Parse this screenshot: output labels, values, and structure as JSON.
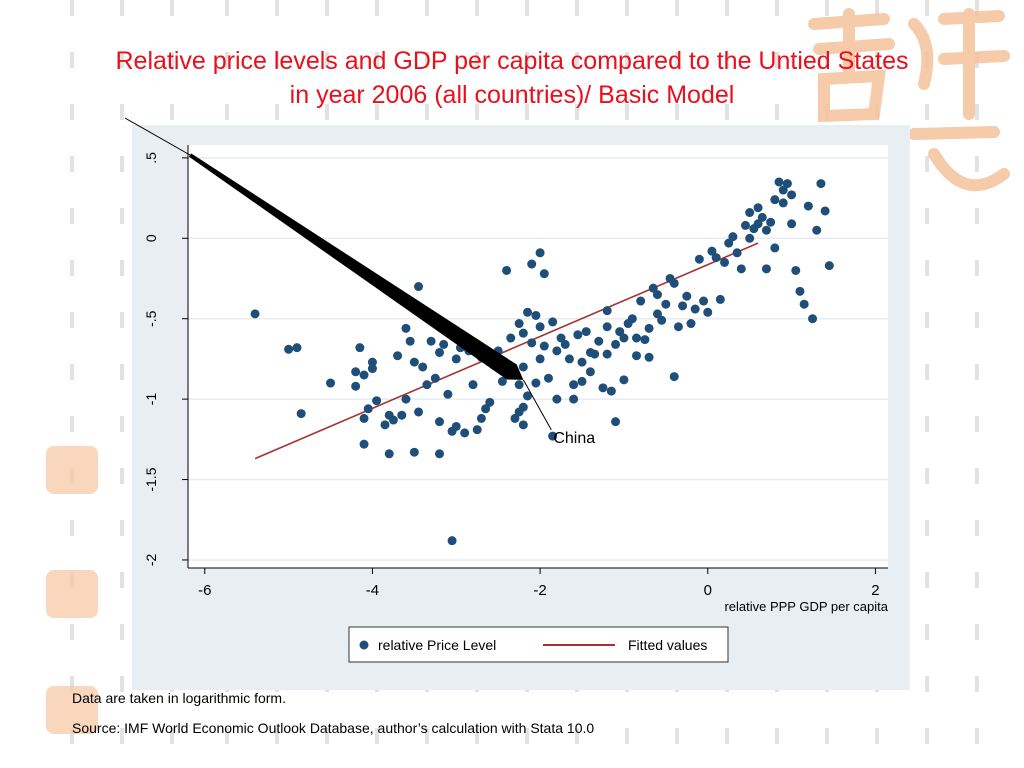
{
  "title_line1": "Relative price levels and GDP per capita compared to the Untied States",
  "title_line2": "in year 2006 (all countries)/ Basic Model",
  "footnotes": {
    "line1": "Data are taken in logarithmic form.",
    "line2": "Source: IMF World Economic Outlook Database, author’s calculation with Stata 10.0"
  },
  "chart_data": {
    "type": "scatter",
    "xlabel": "relative PPP GDP per capita",
    "ylabel": "",
    "xlim": [
      -6.2,
      2.15
    ],
    "ylim": [
      -2.05,
      0.58
    ],
    "x_ticks": [
      {
        "v": -6,
        "label": "-6"
      },
      {
        "v": -4,
        "label": "-4"
      },
      {
        "v": -2,
        "label": "-2"
      },
      {
        "v": 0,
        "label": "0"
      },
      {
        "v": 2,
        "label": "2"
      }
    ],
    "y_ticks": [
      {
        "v": 0.5,
        "label": ".5"
      },
      {
        "v": 0,
        "label": "0"
      },
      {
        "v": -0.5,
        "label": "-.5"
      },
      {
        "v": -1,
        "label": "-1"
      },
      {
        "v": -1.5,
        "label": "-1.5"
      },
      {
        "v": -2,
        "label": "-2"
      }
    ],
    "grid": true,
    "legend_position": "bottom",
    "colors": {
      "points": "#1f4e79",
      "fit": "#a83232",
      "panel_bg": "#e8eef2",
      "plot_bg": "#ffffff"
    },
    "annotation": {
      "label": "China",
      "x": -2.2,
      "y": -0.88
    },
    "series": [
      {
        "name": "relative Price Level",
        "kind": "scatter",
        "points": [
          [
            -5.4,
            -0.47
          ],
          [
            -5.0,
            -0.69
          ],
          [
            -4.9,
            -0.68
          ],
          [
            -4.85,
            -1.09
          ],
          [
            -4.5,
            -0.9
          ],
          [
            -4.2,
            -0.83
          ],
          [
            -4.2,
            -0.92
          ],
          [
            -4.15,
            -0.68
          ],
          [
            -4.1,
            -0.85
          ],
          [
            -4.1,
            -1.12
          ],
          [
            -4.1,
            -1.28
          ],
          [
            -4.05,
            -1.06
          ],
          [
            -4.0,
            -0.77
          ],
          [
            -4.0,
            -0.81
          ],
          [
            -3.95,
            -1.01
          ],
          [
            -3.85,
            -1.16
          ],
          [
            -3.8,
            -1.1
          ],
          [
            -3.8,
            -1.34
          ],
          [
            -3.75,
            -1.13
          ],
          [
            -3.7,
            -0.73
          ],
          [
            -3.65,
            -1.1
          ],
          [
            -3.6,
            -0.56
          ],
          [
            -3.6,
            -1.0
          ],
          [
            -3.55,
            -0.64
          ],
          [
            -3.5,
            -0.77
          ],
          [
            -3.5,
            -1.33
          ],
          [
            -3.45,
            -0.3
          ],
          [
            -3.45,
            -1.08
          ],
          [
            -3.4,
            -0.8
          ],
          [
            -3.35,
            -0.91
          ],
          [
            -3.3,
            -0.64
          ],
          [
            -3.25,
            -0.87
          ],
          [
            -3.2,
            -0.71
          ],
          [
            -3.2,
            -1.14
          ],
          [
            -3.2,
            -1.34
          ],
          [
            -3.15,
            -0.66
          ],
          [
            -3.1,
            -0.97
          ],
          [
            -3.05,
            -1.2
          ],
          [
            -3.0,
            -0.75
          ],
          [
            -3.0,
            -1.17
          ],
          [
            -2.95,
            -0.6
          ],
          [
            -2.95,
            -0.68
          ],
          [
            -2.9,
            -0.67
          ],
          [
            -2.9,
            -1.21
          ],
          [
            -2.85,
            -0.7
          ],
          [
            -2.8,
            -0.91
          ],
          [
            -2.75,
            -1.19
          ],
          [
            -2.7,
            -0.74
          ],
          [
            -2.7,
            -1.12
          ],
          [
            -2.65,
            -1.06
          ],
          [
            -2.6,
            -1.02
          ],
          [
            -2.55,
            -0.79
          ],
          [
            -2.5,
            -0.7
          ],
          [
            -2.45,
            -0.89
          ],
          [
            -2.4,
            -0.2
          ],
          [
            -2.4,
            -0.84
          ],
          [
            -2.35,
            -0.62
          ],
          [
            -2.3,
            -1.12
          ],
          [
            -2.25,
            -1.08
          ],
          [
            -2.25,
            -0.53
          ],
          [
            -2.2,
            -0.8
          ],
          [
            -2.2,
            -0.59
          ],
          [
            -2.2,
            -1.05
          ],
          [
            -2.2,
            -1.16
          ],
          [
            -2.15,
            -0.46
          ],
          [
            -2.15,
            -0.98
          ],
          [
            -2.1,
            -0.16
          ],
          [
            -2.1,
            -0.65
          ],
          [
            -2.05,
            -0.48
          ],
          [
            -2.0,
            -0.09
          ],
          [
            -2.0,
            -0.55
          ],
          [
            -2.0,
            -0.75
          ],
          [
            -1.95,
            -0.22
          ],
          [
            -1.95,
            -0.67
          ],
          [
            -1.9,
            -0.87
          ],
          [
            -1.85,
            -0.52
          ],
          [
            -1.85,
            -1.23
          ],
          [
            -1.8,
            -0.7
          ],
          [
            -1.75,
            -0.62
          ],
          [
            -1.7,
            -0.66
          ],
          [
            -1.65,
            -0.75
          ],
          [
            -1.6,
            -0.91
          ],
          [
            -1.6,
            -1.0
          ],
          [
            -1.55,
            -0.6
          ],
          [
            -1.5,
            -0.77
          ],
          [
            -1.5,
            -0.89
          ],
          [
            -1.45,
            -0.58
          ],
          [
            -1.4,
            -0.71
          ],
          [
            -1.4,
            -0.83
          ],
          [
            -1.35,
            -0.72
          ],
          [
            -1.3,
            -0.64
          ],
          [
            -1.25,
            -0.93
          ],
          [
            -1.2,
            -0.55
          ],
          [
            -1.2,
            -0.45
          ],
          [
            -1.2,
            -0.72
          ],
          [
            -1.15,
            -0.95
          ],
          [
            -1.1,
            -0.66
          ],
          [
            -1.1,
            -1.14
          ],
          [
            -1.05,
            -0.58
          ],
          [
            -1.0,
            -0.62
          ],
          [
            -1.0,
            -0.88
          ],
          [
            -0.95,
            -0.53
          ],
          [
            -0.9,
            -0.5
          ],
          [
            -0.85,
            -0.62
          ],
          [
            -0.85,
            -0.73
          ],
          [
            -0.8,
            -0.39
          ],
          [
            -0.75,
            -0.63
          ],
          [
            -0.7,
            -0.56
          ],
          [
            -0.7,
            -0.74
          ],
          [
            -0.65,
            -0.31
          ],
          [
            -0.6,
            -0.47
          ],
          [
            -0.6,
            -0.35
          ],
          [
            -0.55,
            -0.51
          ],
          [
            -0.5,
            -0.41
          ],
          [
            -0.45,
            -0.25
          ],
          [
            -0.4,
            -0.28
          ],
          [
            -0.4,
            -0.86
          ],
          [
            -0.35,
            -0.55
          ],
          [
            -0.3,
            -0.42
          ],
          [
            -0.25,
            -0.36
          ],
          [
            -0.2,
            -0.53
          ],
          [
            -0.15,
            -0.44
          ],
          [
            -0.1,
            -0.13
          ],
          [
            -0.05,
            -0.39
          ],
          [
            0.0,
            -0.46
          ],
          [
            0.05,
            -0.08
          ],
          [
            0.1,
            -0.12
          ],
          [
            0.15,
            -0.38
          ],
          [
            0.2,
            -0.15
          ],
          [
            0.25,
            -0.03
          ],
          [
            0.3,
            0.01
          ],
          [
            0.35,
            -0.09
          ],
          [
            0.4,
            -0.19
          ],
          [
            0.45,
            0.08
          ],
          [
            0.5,
            0.0
          ],
          [
            0.5,
            0.16
          ],
          [
            0.55,
            0.06
          ],
          [
            0.6,
            0.09
          ],
          [
            0.6,
            0.19
          ],
          [
            0.65,
            0.13
          ],
          [
            0.7,
            0.05
          ],
          [
            0.7,
            -0.19
          ],
          [
            0.75,
            0.1
          ],
          [
            0.8,
            -0.06
          ],
          [
            0.8,
            0.24
          ],
          [
            0.85,
            0.35
          ],
          [
            0.9,
            0.22
          ],
          [
            0.9,
            0.3
          ],
          [
            0.95,
            0.34
          ],
          [
            1.0,
            0.27
          ],
          [
            1.0,
            0.09
          ],
          [
            1.05,
            -0.2
          ],
          [
            1.1,
            -0.33
          ],
          [
            1.15,
            -0.41
          ],
          [
            1.2,
            0.2
          ],
          [
            1.25,
            -0.5
          ],
          [
            1.3,
            0.05
          ],
          [
            1.35,
            0.34
          ],
          [
            1.4,
            0.17
          ],
          [
            1.45,
            -0.17
          ],
          [
            -3.05,
            -1.88
          ],
          [
            -2.05,
            -0.9
          ],
          [
            -1.8,
            -1.0
          ],
          [
            -2.25,
            -0.91
          ]
        ]
      },
      {
        "name": "Fitted values",
        "kind": "line",
        "points": [
          [
            -5.4,
            -1.37
          ],
          [
            0.6,
            -0.03
          ]
        ]
      }
    ]
  }
}
